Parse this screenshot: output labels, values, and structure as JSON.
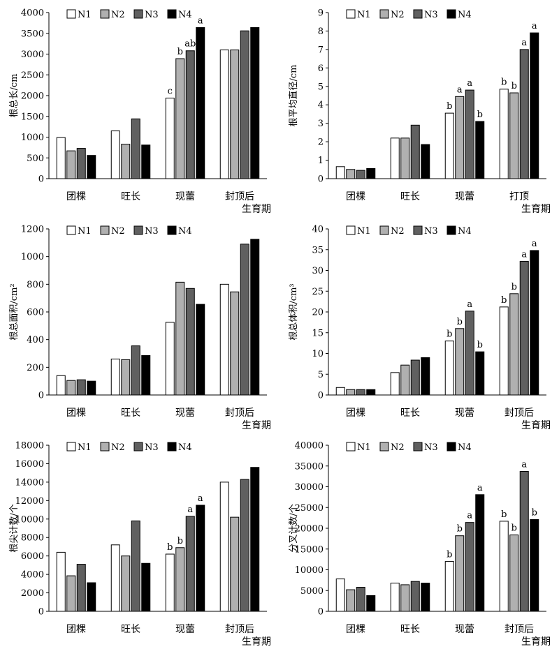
{
  "chart_data": [
    {
      "type": "bar",
      "categories": [
        "团棵",
        "旺长",
        "现蕾",
        "封顶后"
      ],
      "xlabel": "生育期",
      "ylabel": "根总长/cm",
      "ylim": [
        0,
        4000
      ],
      "yticks": [
        0,
        500,
        1000,
        1500,
        2000,
        2500,
        3000,
        3500,
        4000
      ],
      "legend": "top-left",
      "series": [
        {
          "name": "N1",
          "color": "#ffffff",
          "values": [
            990,
            1150,
            1940,
            3100
          ]
        },
        {
          "name": "N2",
          "color": "#b0b0b0",
          "values": [
            670,
            830,
            2890,
            3100
          ]
        },
        {
          "name": "N3",
          "color": "#606060",
          "values": [
            730,
            1440,
            3080,
            3560
          ]
        },
        {
          "name": "N4",
          "color": "#000000",
          "values": [
            560,
            810,
            3640,
            3640
          ]
        }
      ],
      "annotations": [
        [
          "",
          "",
          "",
          ""
        ],
        [
          "",
          "",
          "",
          ""
        ],
        [
          "c",
          "b",
          "ab",
          "a"
        ],
        [
          "",
          "",
          "",
          ""
        ]
      ]
    },
    {
      "type": "bar",
      "categories": [
        "团棵",
        "旺长",
        "现蕾",
        "打顶"
      ],
      "xlabel": "生育期",
      "ylabel": "根平均直径/cm",
      "ylim": [
        0,
        9
      ],
      "yticks": [
        0,
        1,
        2,
        3,
        4,
        5,
        6,
        7,
        8,
        9
      ],
      "legend": "top-left",
      "series": [
        {
          "name": "N1",
          "color": "#ffffff",
          "values": [
            0.65,
            2.2,
            3.55,
            4.85
          ]
        },
        {
          "name": "N2",
          "color": "#b0b0b0",
          "values": [
            0.5,
            2.2,
            4.45,
            4.65
          ]
        },
        {
          "name": "N3",
          "color": "#606060",
          "values": [
            0.45,
            2.9,
            4.8,
            7.0
          ]
        },
        {
          "name": "N4",
          "color": "#000000",
          "values": [
            0.55,
            1.85,
            3.1,
            7.9
          ]
        }
      ],
      "annotations": [
        [
          "",
          "",
          "",
          ""
        ],
        [
          "",
          "",
          "",
          ""
        ],
        [
          "b",
          "a",
          "a",
          "b"
        ],
        [
          "b",
          "b",
          "a",
          "a"
        ]
      ]
    },
    {
      "type": "bar",
      "categories": [
        "团棵",
        "旺长",
        "现蕾",
        "封顶后"
      ],
      "xlabel": "生育期",
      "ylabel": "根总面积/cm²",
      "ylim": [
        0,
        1200
      ],
      "yticks": [
        0,
        200,
        400,
        600,
        800,
        1000,
        1200
      ],
      "legend": "top-left",
      "series": [
        {
          "name": "N1",
          "color": "#ffffff",
          "values": [
            140,
            260,
            525,
            800
          ]
        },
        {
          "name": "N2",
          "color": "#b0b0b0",
          "values": [
            105,
            255,
            815,
            745
          ]
        },
        {
          "name": "N3",
          "color": "#606060",
          "values": [
            110,
            355,
            770,
            1090
          ]
        },
        {
          "name": "N4",
          "color": "#000000",
          "values": [
            100,
            285,
            655,
            1125
          ]
        }
      ],
      "annotations": [
        [
          "",
          "",
          "",
          ""
        ],
        [
          "",
          "",
          "",
          ""
        ],
        [
          "",
          "",
          "",
          ""
        ],
        [
          "",
          "",
          "",
          ""
        ]
      ]
    },
    {
      "type": "bar",
      "categories": [
        "团棵",
        "旺长",
        "现蕾",
        "封顶后"
      ],
      "xlabel": "生育期",
      "ylabel": "根总体积/cm³",
      "ylim": [
        0,
        40
      ],
      "yticks": [
        0,
        5,
        10,
        15,
        20,
        25,
        30,
        35,
        40
      ],
      "legend": "top-left",
      "series": [
        {
          "name": "N1",
          "color": "#ffffff",
          "values": [
            1.8,
            5.4,
            13.0,
            21.2
          ]
        },
        {
          "name": "N2",
          "color": "#b0b0b0",
          "values": [
            1.3,
            7.2,
            16.0,
            24.4
          ]
        },
        {
          "name": "N3",
          "color": "#606060",
          "values": [
            1.3,
            8.4,
            20.2,
            32.2
          ]
        },
        {
          "name": "N4",
          "color": "#000000",
          "values": [
            1.3,
            9.0,
            10.4,
            34.8
          ]
        }
      ],
      "annotations": [
        [
          "",
          "",
          "",
          ""
        ],
        [
          "",
          "",
          "",
          ""
        ],
        [
          "b",
          "b",
          "a",
          "b"
        ],
        [
          "b",
          "b",
          "a",
          "a"
        ]
      ]
    },
    {
      "type": "bar",
      "categories": [
        "团棵",
        "旺长",
        "现蕾",
        "封顶后"
      ],
      "xlabel": "生育期",
      "ylabel": "根尖计数/个",
      "ylim": [
        0,
        18000
      ],
      "yticks": [
        0,
        2000,
        4000,
        6000,
        8000,
        10000,
        12000,
        14000,
        16000,
        18000
      ],
      "legend": "top-left",
      "series": [
        {
          "name": "N1",
          "color": "#ffffff",
          "values": [
            6400,
            7200,
            6200,
            14000
          ]
        },
        {
          "name": "N2",
          "color": "#b0b0b0",
          "values": [
            3850,
            6000,
            6900,
            10200
          ]
        },
        {
          "name": "N3",
          "color": "#606060",
          "values": [
            5100,
            9800,
            10300,
            14300
          ]
        },
        {
          "name": "N4",
          "color": "#000000",
          "values": [
            3100,
            5200,
            11500,
            15600
          ]
        }
      ],
      "annotations": [
        [
          "",
          "",
          "",
          ""
        ],
        [
          "",
          "",
          "",
          ""
        ],
        [
          "b",
          "b",
          "a",
          "a"
        ],
        [
          "",
          "",
          "",
          ""
        ]
      ]
    },
    {
      "type": "bar",
      "categories": [
        "团棵",
        "旺长",
        "现蕾",
        "封顶后"
      ],
      "xlabel": "生育期",
      "ylabel": "分叉计数/个",
      "ylim": [
        0,
        40000
      ],
      "yticks": [
        0,
        5000,
        10000,
        15000,
        20000,
        25000,
        30000,
        35000,
        40000
      ],
      "legend": "top-left",
      "series": [
        {
          "name": "N1",
          "color": "#ffffff",
          "values": [
            7800,
            6800,
            12000,
            21700
          ]
        },
        {
          "name": "N2",
          "color": "#b0b0b0",
          "values": [
            5200,
            6400,
            18200,
            18400
          ]
        },
        {
          "name": "N3",
          "color": "#606060",
          "values": [
            5800,
            7200,
            21400,
            33700
          ]
        },
        {
          "name": "N4",
          "color": "#000000",
          "values": [
            3800,
            6800,
            28100,
            22100
          ]
        }
      ],
      "annotations": [
        [
          "",
          "",
          "",
          ""
        ],
        [
          "",
          "",
          "",
          ""
        ],
        [
          "b",
          "b",
          "a",
          "a"
        ],
        [
          "b",
          "b",
          "a",
          "b"
        ]
      ]
    }
  ]
}
